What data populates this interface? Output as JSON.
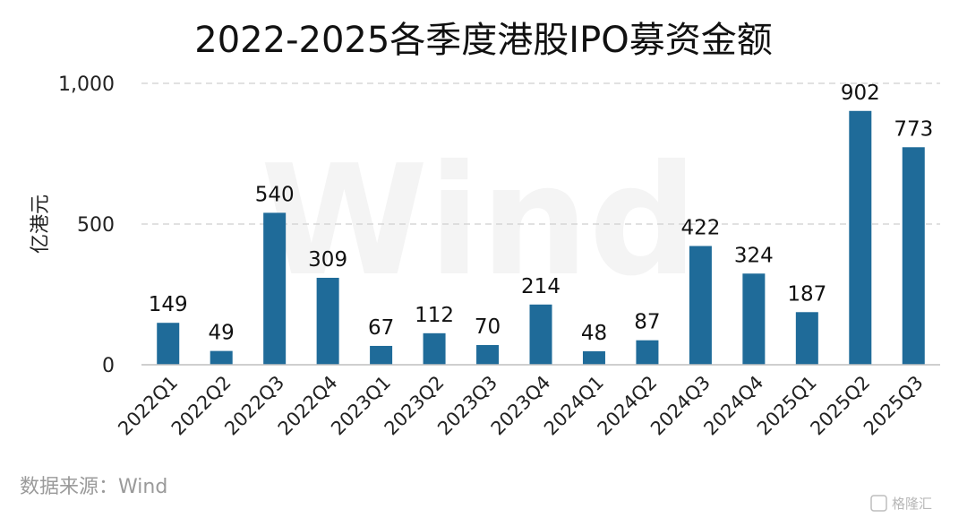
{
  "chart_data": {
    "type": "bar",
    "title": "2022-2025各季度港股IPO募资金额",
    "xlabel": "",
    "ylabel": "亿港元",
    "ylim": [
      0,
      1000
    ],
    "yticks": [
      0,
      500,
      1000
    ],
    "ytick_labels": [
      "0",
      "500",
      "1,000"
    ],
    "grid": true,
    "categories": [
      "2022Q1",
      "2022Q2",
      "2022Q3",
      "2022Q4",
      "2023Q1",
      "2023Q2",
      "2023Q3",
      "2023Q4",
      "2024Q1",
      "2024Q2",
      "2024Q3",
      "2024Q4",
      "2025Q1",
      "2025Q2",
      "2025Q3"
    ],
    "values": [
      149,
      49,
      540,
      309,
      67,
      112,
      70,
      214,
      48,
      87,
      422,
      324,
      187,
      902,
      773
    ],
    "bar_color": "#1f6b99"
  },
  "source": "数据来源：Wind",
  "watermark": "Wind",
  "logo": "格隆汇"
}
